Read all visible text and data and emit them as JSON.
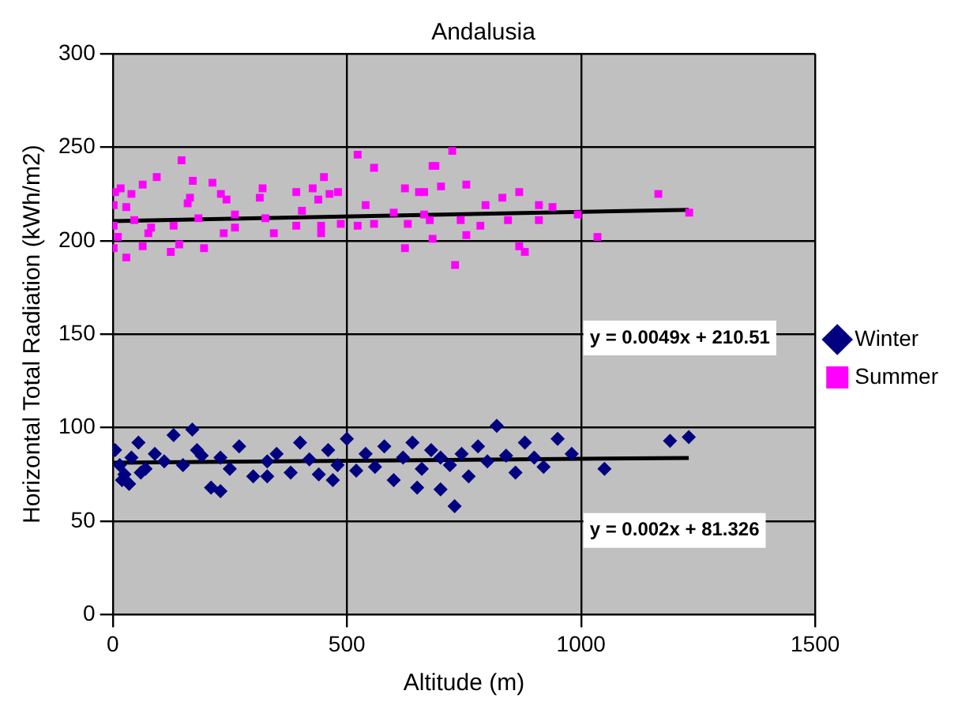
{
  "chart_data": {
    "type": "scatter",
    "title": "Andalusia",
    "xlabel": "Altitude (m)",
    "ylabel": "Horizontal Total Radiation (kWh/m2)",
    "xlim": [
      0,
      1500
    ],
    "xticks": [
      0,
      500,
      1000,
      1500
    ],
    "ylim": [
      0,
      300
    ],
    "yticks": [
      0,
      50,
      100,
      150,
      200,
      250,
      300
    ],
    "grid": true,
    "legend": "right",
    "annotations": [
      "y = 0.0049x + 210.51",
      "y = 0.002x + 81.326"
    ],
    "series": [
      {
        "name": "Winter",
        "color": "#000080",
        "marker": "diamond",
        "x": [
          5,
          15,
          25,
          40,
          55,
          70,
          90,
          110,
          130,
          150,
          170,
          190,
          210,
          230,
          250,
          270,
          300,
          330,
          350,
          380,
          400,
          420,
          440,
          460,
          480,
          500,
          520,
          540,
          560,
          580,
          600,
          620,
          640,
          660,
          680,
          700,
          720,
          730,
          745,
          760,
          780,
          800,
          820,
          840,
          860,
          880,
          900,
          920,
          950,
          980,
          1050,
          1190,
          1230,
          20,
          35,
          60,
          180,
          230,
          330,
          470,
          650,
          700
        ],
        "values": [
          88,
          80,
          75,
          84,
          92,
          78,
          86,
          82,
          96,
          80,
          99,
          85,
          68,
          84,
          78,
          90,
          74,
          82,
          86,
          76,
          92,
          83,
          75,
          88,
          80,
          94,
          77,
          86,
          79,
          90,
          72,
          84,
          92,
          78,
          88,
          67,
          80,
          58,
          86,
          74,
          90,
          82,
          101,
          85,
          76,
          92,
          84,
          79,
          94,
          86,
          78,
          93,
          95,
          72,
          70,
          76,
          88,
          66,
          74,
          72,
          68,
          84
        ]
      },
      {
        "name": "Summer",
        "color": "#ff00ff",
        "marker": "square",
        "x": [
          147,
          523,
          558,
          683,
          94,
          171,
          64,
          213,
          451,
          427,
          5,
          17,
          40,
          165,
          231,
          320,
          392,
          481,
          624,
          654,
          2,
          29,
          160,
          243,
          314,
          439,
          463,
          183,
          261,
          326,
          404,
          540,
          600,
          665,
          2,
          46,
          82,
          130,
          261,
          392,
          445,
          487,
          523,
          558,
          630,
          11,
          76,
          237,
          344,
          445,
          2,
          29,
          64,
          124,
          195,
          142,
          624,
          725,
          689,
          755,
          665,
          701,
          832,
          868,
          796,
          910,
          939,
          677,
          743,
          844,
          910,
          993,
          785,
          683,
          755,
          868,
          880,
          1035,
          731,
          1165,
          1231
        ],
        "values": [
          243,
          246,
          239,
          240,
          234,
          232,
          230,
          231,
          234,
          228,
          226,
          228,
          225,
          223,
          225,
          228,
          226,
          226,
          228,
          226,
          219,
          218,
          220,
          222,
          223,
          222,
          225,
          212,
          214,
          212,
          216,
          219,
          215,
          214,
          208,
          211,
          207,
          208,
          207,
          208,
          208,
          209,
          208,
          209,
          209,
          202,
          204,
          204,
          204,
          204,
          196,
          191,
          197,
          194,
          196,
          198,
          196,
          248,
          240,
          230,
          226,
          229,
          223,
          226,
          219,
          219,
          218,
          211,
          211,
          211,
          211,
          214,
          208,
          201,
          203,
          197,
          194,
          202,
          187,
          225,
          215
        ]
      },
      {
        "type": "line",
        "color": "#000000",
        "x": [
          0,
          1230
        ],
        "values": [
          210.5,
          216.5
        ]
      },
      {
        "type": "line",
        "color": "#000000",
        "x": [
          0,
          1230
        ],
        "values": [
          81.3,
          83.8
        ]
      }
    ]
  }
}
